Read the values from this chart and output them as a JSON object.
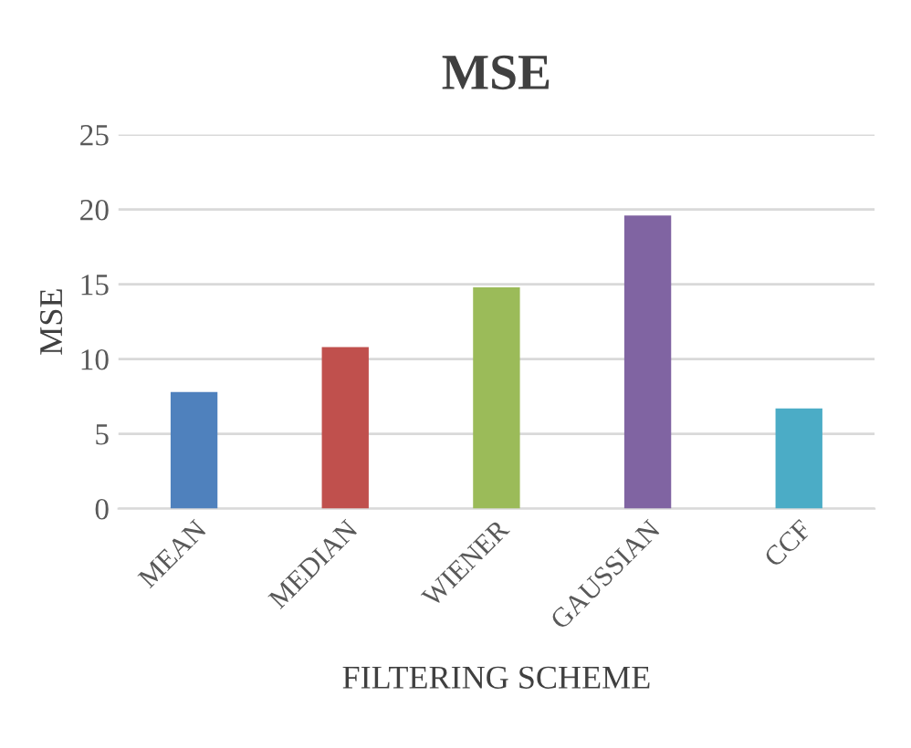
{
  "chart_data": {
    "type": "bar",
    "title": "MSE",
    "xlabel": "FILTERING SCHEME",
    "ylabel": "MSE",
    "categories": [
      "MEAN",
      "MEDIAN",
      "WIENER",
      "GAUSSIAN",
      "CCF"
    ],
    "values": [
      7.8,
      10.8,
      14.8,
      19.6,
      6.7
    ],
    "colors": [
      "#4f81bd",
      "#c0504d",
      "#9bbb59",
      "#8064a2",
      "#4bacc6"
    ],
    "ylim": [
      0,
      25
    ],
    "yticks": [
      0,
      5,
      10,
      15,
      20,
      25
    ],
    "grid": "y"
  }
}
